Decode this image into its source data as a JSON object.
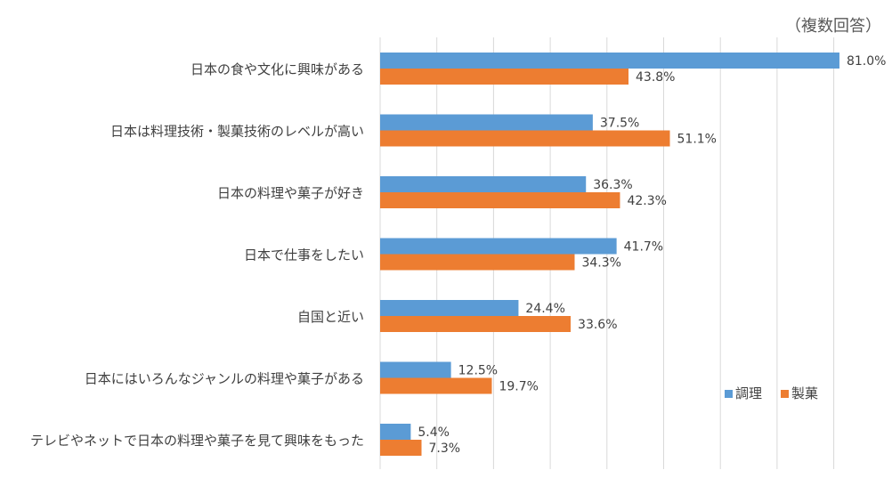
{
  "chart_data": {
    "type": "bar",
    "orientation": "horizontal",
    "note": "（複数回答）",
    "categories": [
      "日本の食や文化に興味がある",
      "日本は料理技術・製菓技術のレベルが高い",
      "日本の料理や菓子が好き",
      "日本で仕事をしたい",
      "自国と近い",
      "日本にはいろんなジャンルの料理や菓子がある",
      "テレビやネットで日本の料理や菓子を見て興味をもった"
    ],
    "series": [
      {
        "name": "調理",
        "color": "#5B9BD5",
        "values": [
          81.0,
          37.5,
          36.3,
          41.7,
          24.4,
          12.5,
          5.4
        ],
        "labels": [
          "81.0%",
          "37.5%",
          "36.3%",
          "41.7%",
          "24.4%",
          "12.5%",
          "5.4%"
        ]
      },
      {
        "name": "製菓",
        "color": "#ED7D31",
        "values": [
          43.8,
          51.1,
          42.3,
          34.3,
          33.6,
          19.7,
          7.3
        ],
        "labels": [
          "43.8%",
          "51.1%",
          "42.3%",
          "34.3%",
          "33.6%",
          "19.7%",
          "7.3%"
        ]
      }
    ],
    "xlim": [
      0,
      90
    ],
    "grid": true,
    "gridline_step": 10,
    "legend_position": "bottom-right"
  }
}
